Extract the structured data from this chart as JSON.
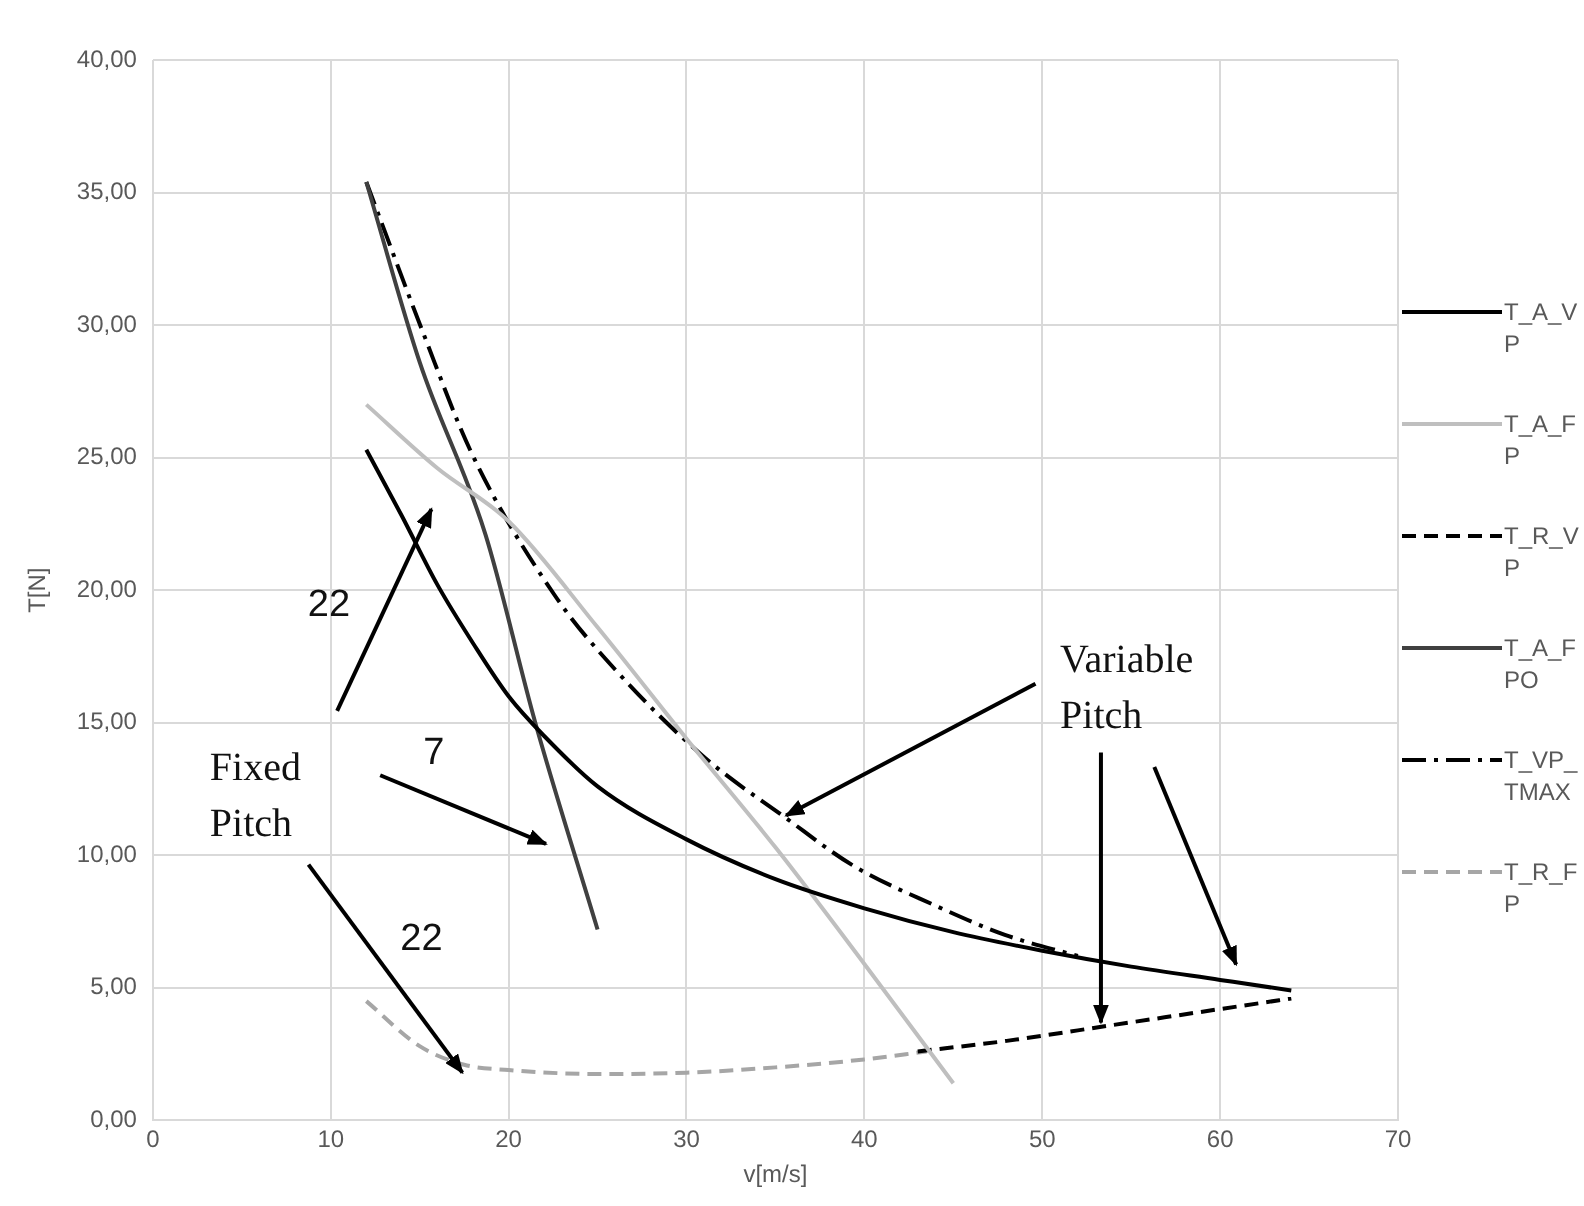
{
  "chart_data": {
    "type": "line",
    "xlabel": "v[m/s]",
    "ylabel": "T[N]",
    "xlim": [
      0,
      70
    ],
    "xticks": [
      0,
      10,
      20,
      30,
      40,
      50,
      60,
      70
    ],
    "ylim": [
      0,
      40
    ],
    "yticks": [
      {
        "value": 0,
        "label": "0,00"
      },
      {
        "value": 5,
        "label": "5,00"
      },
      {
        "value": 10,
        "label": "10,00"
      },
      {
        "value": 15,
        "label": "15,00"
      },
      {
        "value": 20,
        "label": "20,00"
      },
      {
        "value": 25,
        "label": "25,00"
      },
      {
        "value": 30,
        "label": "30,00"
      },
      {
        "value": 35,
        "label": "35,00"
      },
      {
        "value": 40,
        "label": "40,00"
      }
    ],
    "grid": true,
    "legend": "right",
    "marker": "none",
    "series": [
      {
        "name": "T_A_V P",
        "color": "#000000",
        "line_style": "solid",
        "x": [
          12,
          14,
          16,
          18,
          20,
          22,
          25,
          30,
          35,
          40,
          45,
          50,
          55,
          60,
          64
        ],
        "values": [
          25.3,
          22.8,
          20.2,
          18.0,
          16.0,
          14.5,
          12.6,
          10.6,
          9.1,
          8.0,
          7.1,
          6.4,
          5.8,
          5.3,
          4.9
        ]
      },
      {
        "name": "T_A_F P",
        "color": "#bfbfbf",
        "line_style": "solid",
        "x": [
          12,
          16,
          20,
          25,
          30,
          35,
          40,
          45
        ],
        "values": [
          27.0,
          24.6,
          22.6,
          18.6,
          14.4,
          10.3,
          5.9,
          1.4
        ]
      },
      {
        "name": "T_R_V P",
        "color": "#000000",
        "line_style": "dashed",
        "x": [
          43,
          48,
          54,
          60,
          64
        ],
        "values": [
          2.6,
          3.0,
          3.6,
          4.2,
          4.6
        ]
      },
      {
        "name": "T_A_F PO",
        "color": "#404040",
        "line_style": "solid",
        "x": [
          12,
          15,
          18.7,
          21.5,
          25
        ],
        "values": [
          35.4,
          28.6,
          22.1,
          15.0,
          7.2
        ]
      },
      {
        "name": "T_VP_ TMAX",
        "color": "#000000",
        "line_style": "dashdot",
        "x": [
          12,
          15.2,
          17.9,
          22.6,
          26,
          31,
          35.6,
          39.4,
          44,
          47.9,
          52
        ],
        "values": [
          35.4,
          29.7,
          25.2,
          19.8,
          17.0,
          13.7,
          11.4,
          9.6,
          8.1,
          7.0,
          6.2
        ]
      },
      {
        "name": "T_R_F P",
        "color": "#a6a6a6",
        "line_style": "dashed",
        "x": [
          12,
          15,
          17.5,
          20,
          25,
          30,
          35,
          40,
          43.5
        ],
        "values": [
          4.5,
          2.8,
          2.1,
          1.9,
          1.75,
          1.8,
          2.0,
          2.3,
          2.6
        ]
      }
    ],
    "annotations": [
      "22",
      "7",
      {
        "text": "Fixed Pitch",
        "x": 17.4,
        "y": 1.8
      },
      "22",
      {
        "text": "Variable Pitch",
        "x": 35.6,
        "y": 11.5
      }
    ]
  }
}
